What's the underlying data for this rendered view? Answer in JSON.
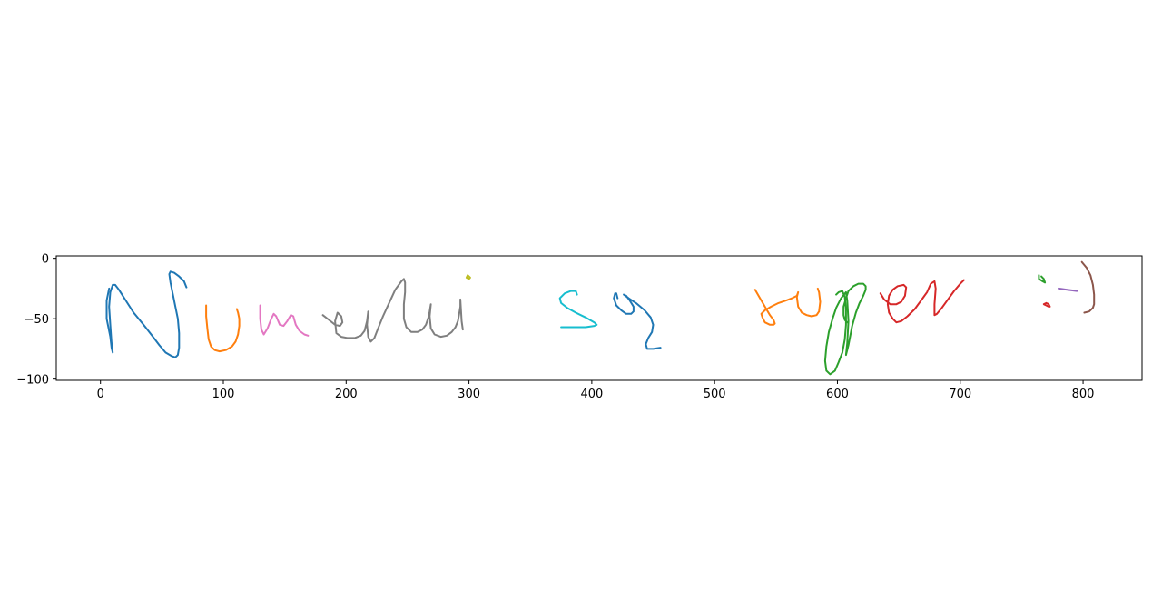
{
  "chart_data": {
    "type": "line",
    "title": "",
    "xlabel": "",
    "ylabel": "",
    "xlim": [
      -36,
      848
    ],
    "ylim": [
      -101,
      2
    ],
    "grid": false,
    "xticks": [
      0,
      100,
      200,
      300,
      400,
      500,
      600,
      700,
      800
    ],
    "yticks": [
      0,
      -50,
      -100
    ],
    "xtick_labels": [
      "0",
      "100",
      "200",
      "300",
      "400",
      "500",
      "600",
      "700",
      "800"
    ],
    "ytick_labels": [
      "0",
      "−50",
      "−100"
    ],
    "series": [
      {
        "color": "#1f77b4",
        "x": [
          7,
          5,
          5,
          8,
          9,
          10,
          9,
          8,
          7,
          8,
          10,
          12,
          15,
          20,
          27,
          35,
          42,
          48,
          53,
          58,
          61,
          63,
          64,
          64,
          63,
          61,
          59,
          57,
          56,
          57,
          60,
          64,
          68,
          70
        ],
        "y": [
          -25,
          -35,
          -50,
          -65,
          -74,
          -78,
          -70,
          -55,
          -40,
          -28,
          -22,
          -22,
          -26,
          -34,
          -45,
          -55,
          -64,
          -72,
          -78,
          -81,
          -82,
          -80,
          -74,
          -62,
          -50,
          -40,
          -30,
          -20,
          -13,
          -11,
          -12,
          -15,
          -19,
          -24
        ]
      },
      {
        "color": "#ff7f0e",
        "x": [
          86,
          86,
          87,
          88,
          90,
          93,
          97,
          102,
          107,
          110,
          112,
          113,
          113,
          112,
          111
        ],
        "y": [
          -39,
          -48,
          -58,
          -67,
          -73,
          -76,
          -77,
          -76,
          -73,
          -69,
          -63,
          -56,
          -50,
          -45,
          -42
        ]
      },
      {
        "color": "#e377c2",
        "x": [
          130,
          130,
          131,
          133,
          136,
          139,
          141,
          143,
          146,
          149,
          152,
          155,
          157,
          159,
          162,
          166,
          169
        ],
        "y": [
          -39,
          -50,
          -59,
          -63,
          -58,
          -50,
          -46,
          -48,
          -55,
          -56,
          -52,
          -47,
          -48,
          -55,
          -60,
          -63,
          -64
        ]
      },
      {
        "color": "#7f7f7f",
        "x": [
          181,
          186,
          191,
          195,
          197,
          196,
          193,
          191,
          192,
          196,
          201,
          207,
          212,
          215,
          217,
          218,
          217,
          218,
          220,
          223,
          226,
          230,
          235,
          240,
          245,
          247,
          248,
          248,
          247,
          247,
          249,
          253,
          258,
          262,
          265,
          267,
          268,
          269,
          268,
          269,
          272,
          277,
          282,
          286,
          289,
          291,
          292,
          293,
          293,
          294,
          295
        ],
        "y": [
          -47,
          -51,
          -55,
          -56,
          -53,
          -48,
          -45,
          -52,
          -62,
          -65,
          -66,
          -66,
          -64,
          -60,
          -52,
          -44,
          -55,
          -65,
          -69,
          -66,
          -58,
          -48,
          -37,
          -26,
          -19,
          -17,
          -20,
          -28,
          -38,
          -50,
          -57,
          -61,
          -61,
          -59,
          -55,
          -49,
          -44,
          -38,
          -48,
          -58,
          -63,
          -65,
          -64,
          -61,
          -57,
          -52,
          -46,
          -40,
          -34,
          -52,
          -59
        ]
      },
      {
        "color": "#bcbd22",
        "x": [
          299,
          298,
          300,
          301,
          299
        ],
        "y": [
          -14,
          -16,
          -17,
          -16,
          -14
        ]
      },
      {
        "color": "#17becf",
        "x": [
          388,
          387,
          383,
          378,
          374,
          375,
          380,
          387,
          395,
          402,
          404,
          402,
          395,
          387,
          380,
          375
        ],
        "y": [
          -30,
          -27,
          -27,
          -29,
          -33,
          -37,
          -41,
          -45,
          -49,
          -53,
          -55,
          -56,
          -57,
          -57,
          -57,
          -57
        ]
      },
      {
        "color": "#1f77b4",
        "x": [
          421,
          420,
          419,
          418,
          420,
          424,
          428,
          432,
          434,
          434,
          431,
          428,
          426,
          430,
          436,
          443,
          448,
          450,
          449,
          446,
          444,
          445,
          450,
          456
        ],
        "y": [
          -33,
          -29,
          -29,
          -33,
          -39,
          -43,
          -46,
          -46,
          -44,
          -40,
          -35,
          -31,
          -30,
          -33,
          -37,
          -43,
          -49,
          -55,
          -61,
          -66,
          -71,
          -75,
          -75,
          -74
        ]
      },
      {
        "color": "#ff7f0e",
        "x": [
          533,
          537,
          541,
          545,
          548,
          549,
          548,
          545,
          541,
          539,
          538,
          541,
          546,
          552,
          558,
          563,
          567,
          568,
          567,
          568,
          571,
          575,
          579,
          583,
          585,
          586,
          585,
          584
        ],
        "y": [
          -26,
          -33,
          -40,
          -47,
          -51,
          -54,
          -55,
          -55,
          -53,
          -49,
          -46,
          -43,
          -40,
          -37,
          -35,
          -33,
          -31,
          -28,
          -32,
          -40,
          -45,
          -47,
          -48,
          -47,
          -44,
          -36,
          -28,
          -25
        ]
      },
      {
        "color": "#2ca02c",
        "x": [
          599,
          601,
          604,
          606,
          607,
          607,
          606,
          604,
          601,
          598,
          594,
          591,
          590,
          591,
          593,
          596,
          599,
          603,
          607,
          608,
          609,
          608,
          607,
          609,
          612,
          615,
          618,
          621,
          623,
          623,
          621,
          617,
          613,
          609,
          607,
          605,
          605,
          606,
          608
        ],
        "y": [
          -30,
          -28,
          -27,
          -32,
          -42,
          -55,
          -67,
          -78,
          -86,
          -93,
          -96,
          -93,
          -85,
          -73,
          -61,
          -50,
          -41,
          -33,
          -28,
          -35,
          -52,
          -70,
          -80,
          -72,
          -56,
          -45,
          -37,
          -31,
          -26,
          -23,
          -21,
          -21,
          -23,
          -27,
          -33,
          -40,
          -47,
          -51,
          -53
        ]
      },
      {
        "color": "#d62728",
        "x": [
          635,
          638,
          643,
          648,
          652,
          655,
          656,
          654,
          649,
          645,
          642,
          641,
          642,
          645,
          648,
          652,
          657,
          663,
          668,
          673,
          676,
          679,
          680,
          679,
          679,
          681,
          685,
          690,
          695,
          700,
          703
        ],
        "y": [
          -29,
          -34,
          -38,
          -38,
          -36,
          -31,
          -24,
          -22,
          -23,
          -26,
          -31,
          -38,
          -45,
          -50,
          -53,
          -52,
          -48,
          -42,
          -35,
          -28,
          -21,
          -19,
          -25,
          -38,
          -47,
          -46,
          -41,
          -34,
          -27,
          -21,
          -18
        ]
      },
      {
        "color": "#2ca02c",
        "x": [
          764,
          764,
          767,
          769,
          768,
          766
        ],
        "y": [
          -14,
          -17,
          -19,
          -20,
          -17,
          -15
        ]
      },
      {
        "color": "#d62728",
        "x": [
          770,
          768,
          770,
          772,
          773,
          772,
          770
        ],
        "y": [
          -37,
          -38,
          -39,
          -40,
          -40,
          -38,
          -37
        ]
      },
      {
        "color": "#9467bd",
        "x": [
          780,
          787,
          795
        ],
        "y": [
          -25,
          -26,
          -27
        ]
      },
      {
        "color": "#8c564b",
        "x": [
          799,
          803,
          806,
          808,
          809,
          809,
          808,
          805,
          801
        ],
        "y": [
          -3,
          -8,
          -14,
          -22,
          -30,
          -38,
          -41,
          -44,
          -45
        ]
      }
    ]
  }
}
